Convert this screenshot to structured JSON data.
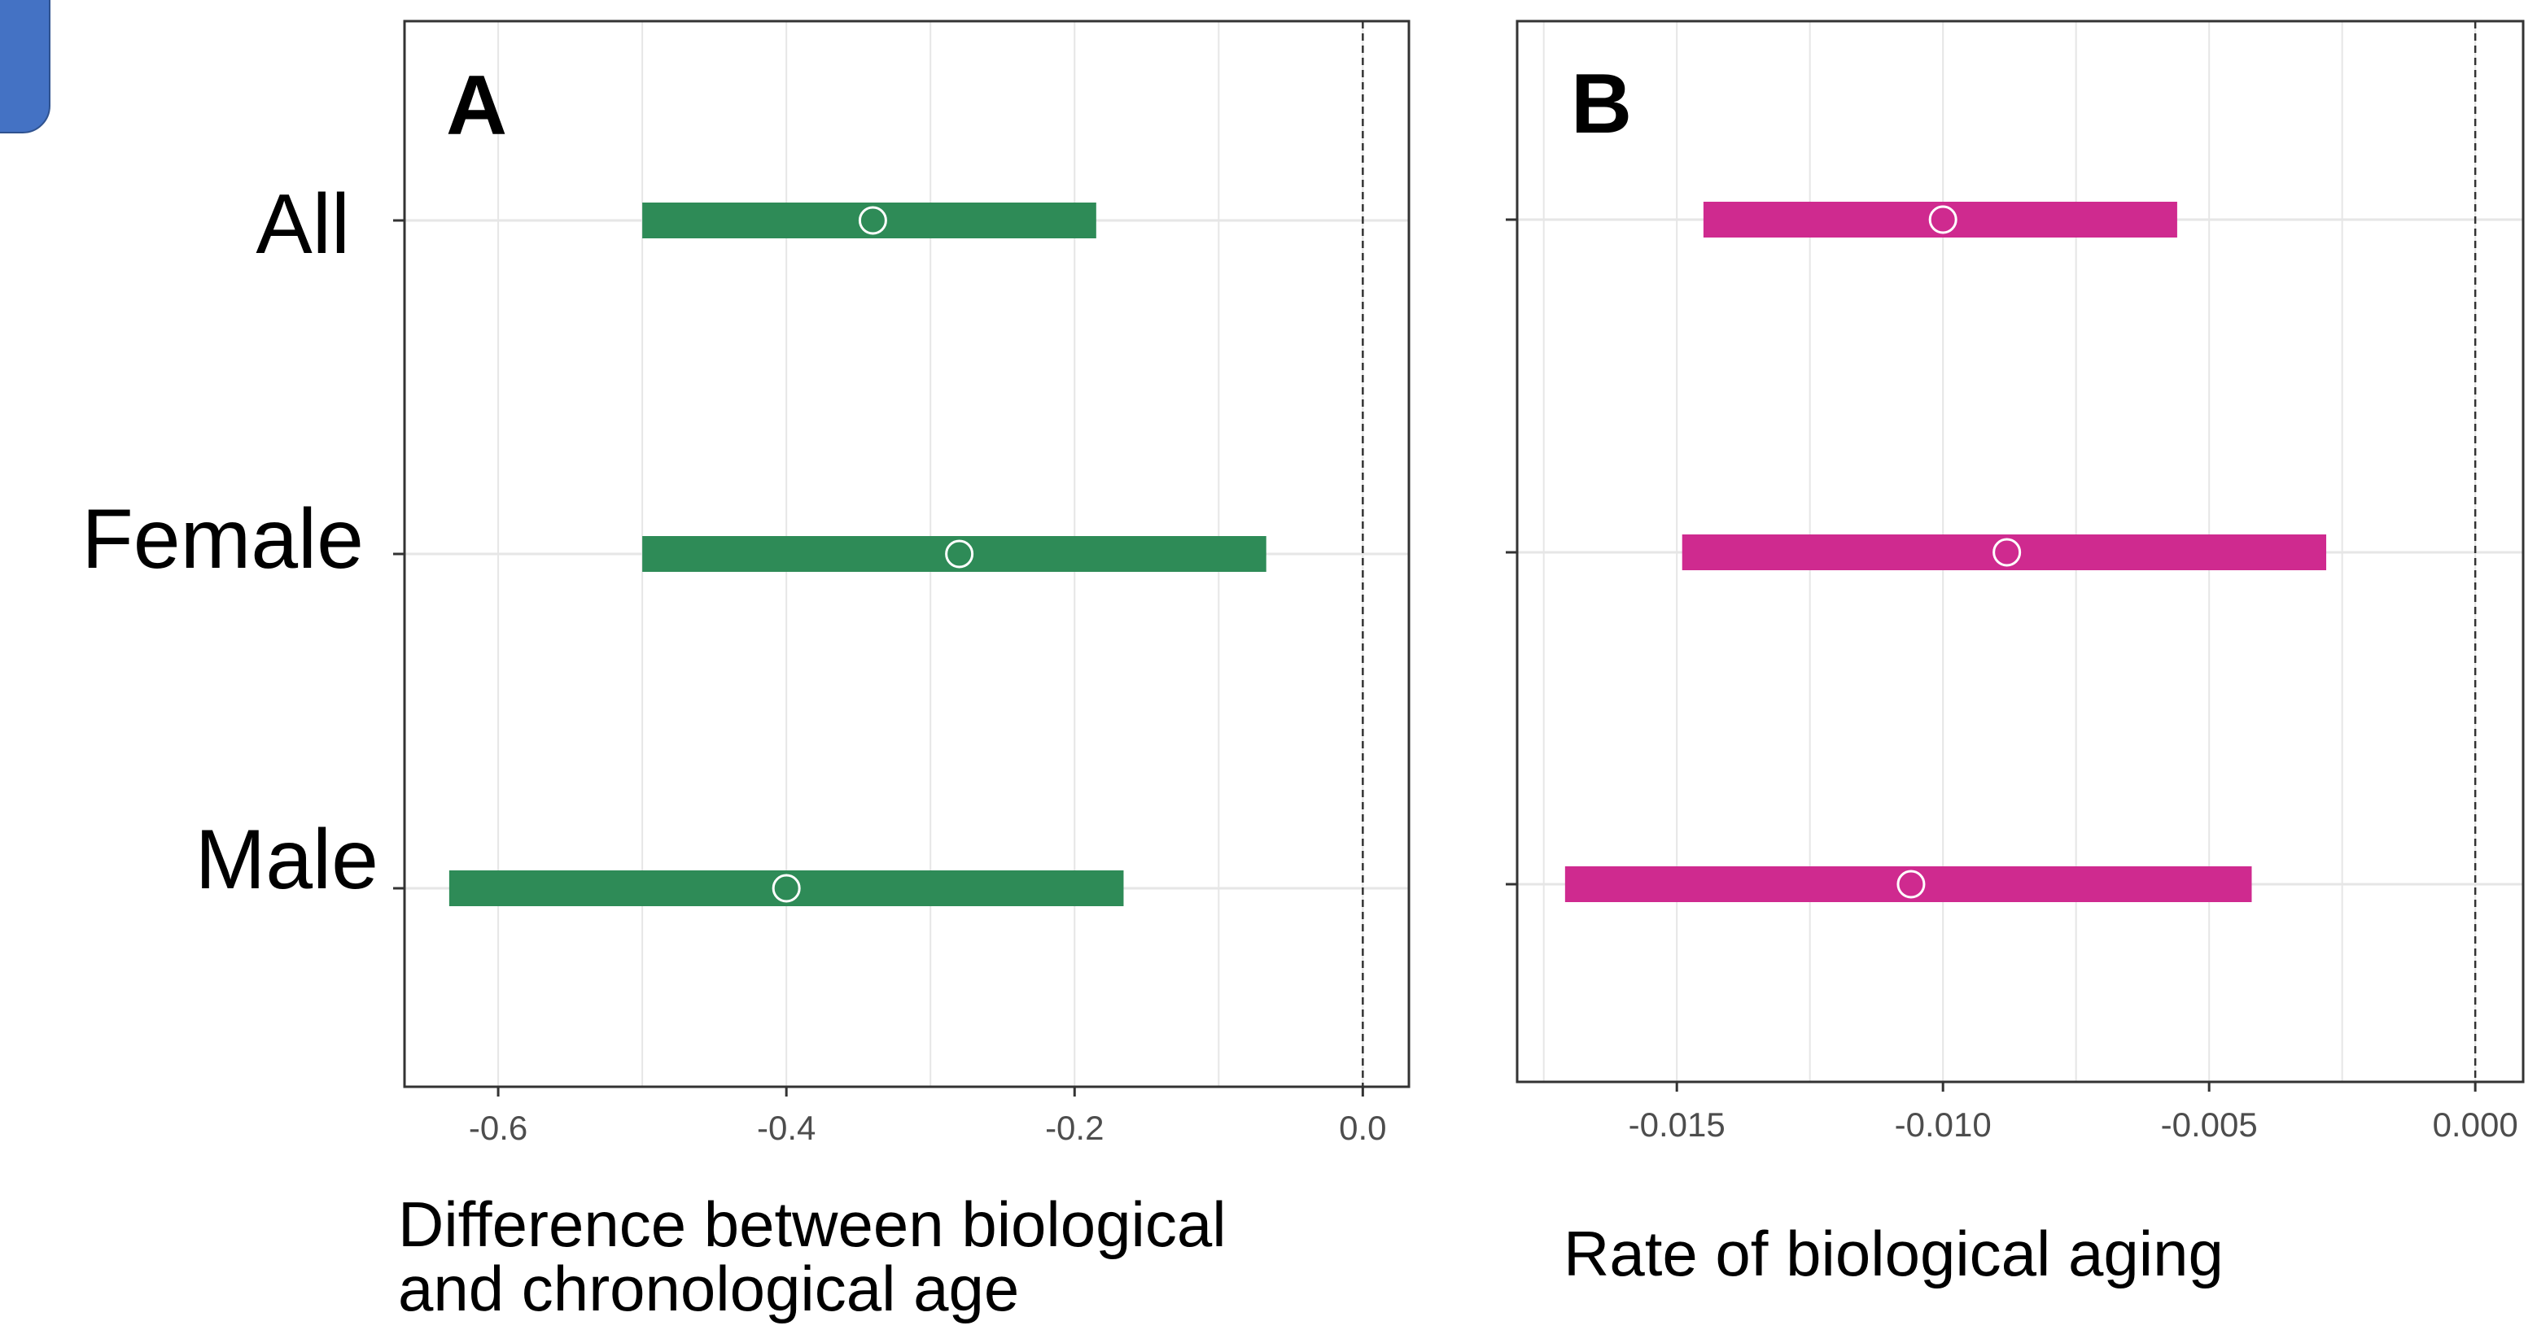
{
  "colors": {
    "panel_a_bar": "#2e8b57",
    "panel_b_bar": "#cf2a8f",
    "gridline": "#e6e6e6",
    "axis": "#333333",
    "tick_label": "#4d4d4d",
    "decorative_tab": "#4472c4"
  },
  "chart_data": [
    {
      "type": "forest",
      "panel_label": "A",
      "categories": [
        "All",
        "Female",
        "Male"
      ],
      "estimates": [
        -0.34,
        -0.28,
        -0.4
      ],
      "ci_lower": [
        -0.5,
        -0.5,
        -0.634
      ],
      "ci_upper": [
        -0.185,
        -0.067,
        -0.166
      ],
      "xlim": [
        -0.665,
        0.032
      ],
      "xticks": [
        -0.6,
        -0.4,
        -0.2,
        0.0
      ],
      "xtick_labels": [
        "-0.6",
        "-0.4",
        "-0.2",
        "0.0"
      ],
      "reference_line": 0.0,
      "xlabel_lines": [
        "Difference between biological",
        "and chronological age"
      ],
      "grid": true
    },
    {
      "type": "forest",
      "panel_label": "B",
      "categories": [
        "All",
        "Female",
        "Male"
      ],
      "estimates": [
        -0.01,
        -0.0088,
        -0.0106
      ],
      "ci_lower": [
        -0.0145,
        -0.0149,
        -0.0171
      ],
      "ci_upper": [
        -0.0056,
        -0.0028,
        -0.0042
      ],
      "xlim": [
        -0.018,
        0.0009
      ],
      "xticks": [
        -0.015,
        -0.01,
        -0.005,
        0.0
      ],
      "xtick_labels": [
        "-0.015",
        "-0.010",
        "-0.005",
        "0.000"
      ],
      "reference_line": 0.0,
      "xlabel_lines": [
        "Rate of biological aging"
      ],
      "grid": true
    }
  ]
}
